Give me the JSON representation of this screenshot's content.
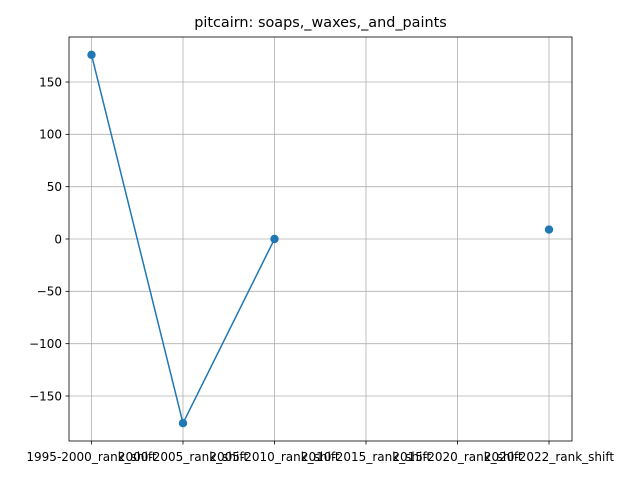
{
  "chart_data": {
    "type": "line",
    "title": "pitcairn: soaps,_waxes,_and_paints",
    "xlabel": "",
    "ylabel": "",
    "categories": [
      "1995-2000_rank_shift",
      "2000-2005_rank_shift",
      "2005-2010_rank_shift",
      "2010-2015_rank_shift",
      "2015-2020_rank_shift",
      "2020-2022_rank_shift"
    ],
    "series": [
      {
        "values": [
          176,
          -176,
          0,
          null,
          null,
          9
        ]
      }
    ],
    "ylim": [
      -193,
      193
    ],
    "yticks": [
      -150,
      -100,
      -50,
      0,
      50,
      100,
      150
    ],
    "ytick_labels": [
      "−150",
      "−100",
      "−50",
      "0",
      "50",
      "100",
      "150"
    ],
    "grid": true,
    "colors": {
      "line": "#1f77b4",
      "grid": "#b0b0b0",
      "axes": "#000000"
    }
  }
}
